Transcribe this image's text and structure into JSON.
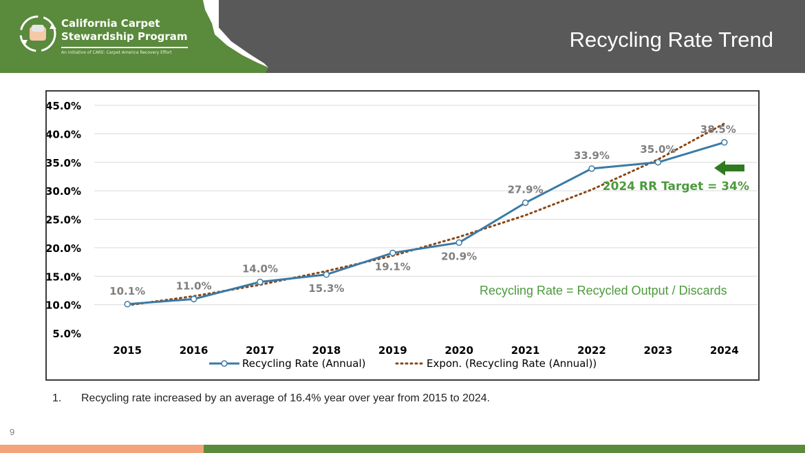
{
  "header": {
    "org_line1": "California Carpet",
    "org_line2": "Stewardship Program",
    "tagline": "An initiative of CARE: Carpet America Recovery Effort",
    "slide_title": "Recycling Rate Trend",
    "logo_icon": "recycle-hands-icon",
    "state_icon": "california-outline-icon"
  },
  "colors": {
    "header_gray": "#595959",
    "brand_green": "#5a8a3c",
    "series_blue": "#3a7aa6",
    "trend_brown": "#8b4513",
    "annotation_green": "#4c9a3c",
    "label_gray": "#7f7f7f",
    "footer_orange": "#f4a47a"
  },
  "chart_data": {
    "type": "line",
    "title": "",
    "xlabel": "",
    "ylabel": "",
    "categories": [
      "2015",
      "2016",
      "2017",
      "2018",
      "2019",
      "2020",
      "2021",
      "2022",
      "2023",
      "2024"
    ],
    "series": [
      {
        "name": "Recycling Rate (Annual)",
        "values": [
          10.1,
          11.0,
          14.0,
          15.3,
          19.1,
          20.9,
          27.9,
          33.9,
          35.0,
          38.5
        ],
        "data_labels": [
          "10.1%",
          "11.0%",
          "14.0%",
          "15.3%",
          "19.1%",
          "20.9%",
          "27.9%",
          "33.9%",
          "35.0%",
          "38.5%"
        ],
        "line_style": "solid",
        "marker": "open-circle"
      },
      {
        "name": "Expon. (Recycling Rate (Annual))",
        "values": [
          9.9,
          11.5,
          13.5,
          15.9,
          18.6,
          21.9,
          25.7,
          30.2,
          35.5,
          41.8
        ],
        "line_style": "dotted"
      }
    ],
    "ylim": [
      5,
      45
    ],
    "yticks": [
      "5.0%",
      "10.0%",
      "15.0%",
      "20.0%",
      "25.0%",
      "30.0%",
      "35.0%",
      "40.0%",
      "45.0%"
    ],
    "grid": true,
    "legend_position": "bottom",
    "annotations": {
      "target_text": "2024 RR Target = 34%",
      "target_value": 34,
      "target_arrow_icon": "left-arrow-icon",
      "formula_text": "Recycling Rate = Recycled Output / Discards"
    }
  },
  "footnote": {
    "number": "1.",
    "text": "Recycling rate increased by an average of 16.4% year over year from 2015 to 2024."
  },
  "page_number": "9"
}
